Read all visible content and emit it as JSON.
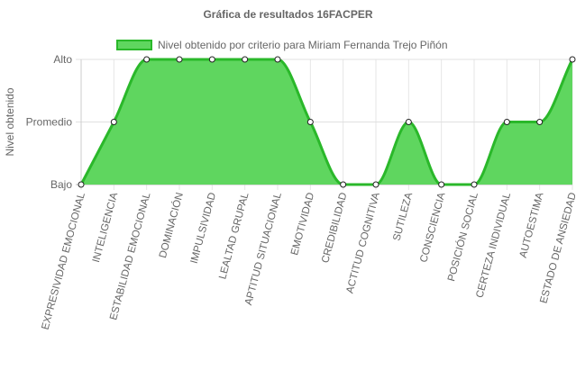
{
  "chart_data": {
    "type": "area",
    "title": "Gráfica de resultados 16FACPER",
    "ylabel": "Nivel obtenido",
    "xlabel": "",
    "y_ticks": [
      "Bajo",
      "Promedio",
      "Alto"
    ],
    "ylim": [
      0,
      2
    ],
    "grid": true,
    "legend_position": "top",
    "colors": {
      "fill": "#5fd65f",
      "line": "#2ab82a"
    },
    "categories": [
      "EXPRESIVIDAD EMOCIONAL",
      "INTELIGENCIA",
      "ESTABILIDAD EMOCIONAL",
      "DOMINACIÓN",
      "IMPULSIVIDAD",
      "LEALTAD GRUPAL",
      "APTITUD SITUACIONAL",
      "EMOTIVIDAD",
      "CREDIBILIDAD",
      "ACTITUD COGNITIVA",
      "SUTILEZA",
      "CONSCIENCIA",
      "POSICIÓN SOCIAL",
      "CERTEZA INDIVIDUAL",
      "AUTOESTIMA",
      "ESTADO DE ANSIEDAD"
    ],
    "series": [
      {
        "name": "Nivel obtenido por criterio para Miriam Fernanda Trejo Piñón",
        "values": [
          0,
          1,
          2,
          2,
          2,
          2,
          2,
          1,
          0,
          0,
          1,
          0,
          0,
          1,
          1,
          2
        ]
      }
    ]
  }
}
